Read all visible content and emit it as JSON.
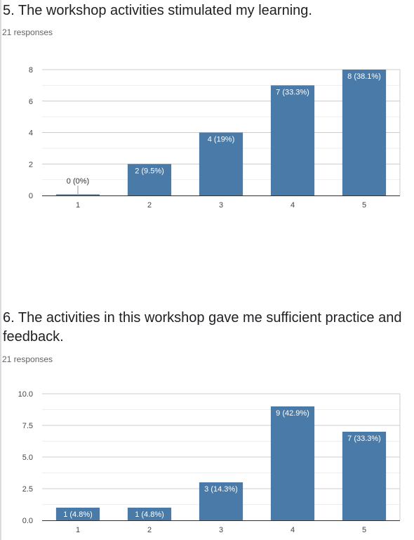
{
  "questions": [
    {
      "title": "5. The workshop activities stimulated my learning.",
      "responses": "21 responses"
    },
    {
      "title": "6. The activities in this workshop gave me sufficient practice and feedback.",
      "responses": "21 responses"
    }
  ],
  "colors": {
    "bar": "#4a7aa7",
    "grid": "#e6e6e6",
    "axis": "#333333",
    "tick_text": "#444444",
    "label_dark": "#333333",
    "label_light": "#ffffff"
  },
  "chart_data": [
    {
      "type": "bar",
      "categories": [
        "1",
        "2",
        "3",
        "4",
        "5"
      ],
      "values": [
        0,
        2,
        4,
        7,
        8
      ],
      "data_labels": [
        "0 (0%)",
        "2 (9.5%)",
        "4 (19%)",
        "7 (33.3%)",
        "8 (38.1%)"
      ],
      "yticks": [
        "0",
        "2",
        "4",
        "6",
        "8"
      ],
      "ylim": [
        0,
        8
      ],
      "minor_gridlines": true
    },
    {
      "type": "bar",
      "categories": [
        "1",
        "2",
        "3",
        "4",
        "5"
      ],
      "values": [
        1,
        1,
        3,
        9,
        7
      ],
      "data_labels": [
        "1 (4.8%)",
        "1 (4.8%)",
        "3 (14.3%)",
        "9 (42.9%)",
        "7 (33.3%)"
      ],
      "yticks": [
        "0.0",
        "2.5",
        "5.0",
        "7.5",
        "10.0"
      ],
      "ylim": [
        0,
        10
      ],
      "minor_gridlines": true
    }
  ]
}
